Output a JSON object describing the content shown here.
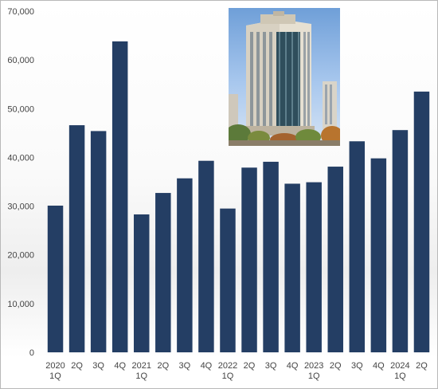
{
  "chart_data": {
    "type": "bar",
    "categories": [
      [
        "2020",
        "1Q"
      ],
      [
        "2Q",
        ""
      ],
      [
        "3Q",
        ""
      ],
      [
        "4Q",
        ""
      ],
      [
        "2021",
        "1Q"
      ],
      [
        "2Q",
        ""
      ],
      [
        "3Q",
        ""
      ],
      [
        "4Q",
        ""
      ],
      [
        "2022",
        "1Q"
      ],
      [
        "2Q",
        ""
      ],
      [
        "3Q",
        ""
      ],
      [
        "4Q",
        ""
      ],
      [
        "2023",
        "1Q"
      ],
      [
        "2Q",
        ""
      ],
      [
        "3Q",
        ""
      ],
      [
        "4Q",
        ""
      ],
      [
        "2024",
        "1Q"
      ],
      [
        "2Q",
        ""
      ]
    ],
    "values": [
      30100,
      46600,
      45400,
      63800,
      28300,
      32700,
      35700,
      39300,
      29500,
      37900,
      39100,
      34600,
      34900,
      38100,
      43300,
      39800,
      45600,
      53500
    ],
    "ylim": [
      0,
      70000
    ],
    "yticks": [
      "0",
      "10,000",
      "20,000",
      "30,000",
      "40,000",
      "50,000",
      "60,000",
      "70,000"
    ],
    "ytick_values": [
      0,
      10000,
      20000,
      30000,
      40000,
      50000,
      60000,
      70000
    ],
    "bar_color": "#243e64",
    "grid": false,
    "legend": "none"
  },
  "photo": {
    "icon": "office-tower-photo"
  }
}
